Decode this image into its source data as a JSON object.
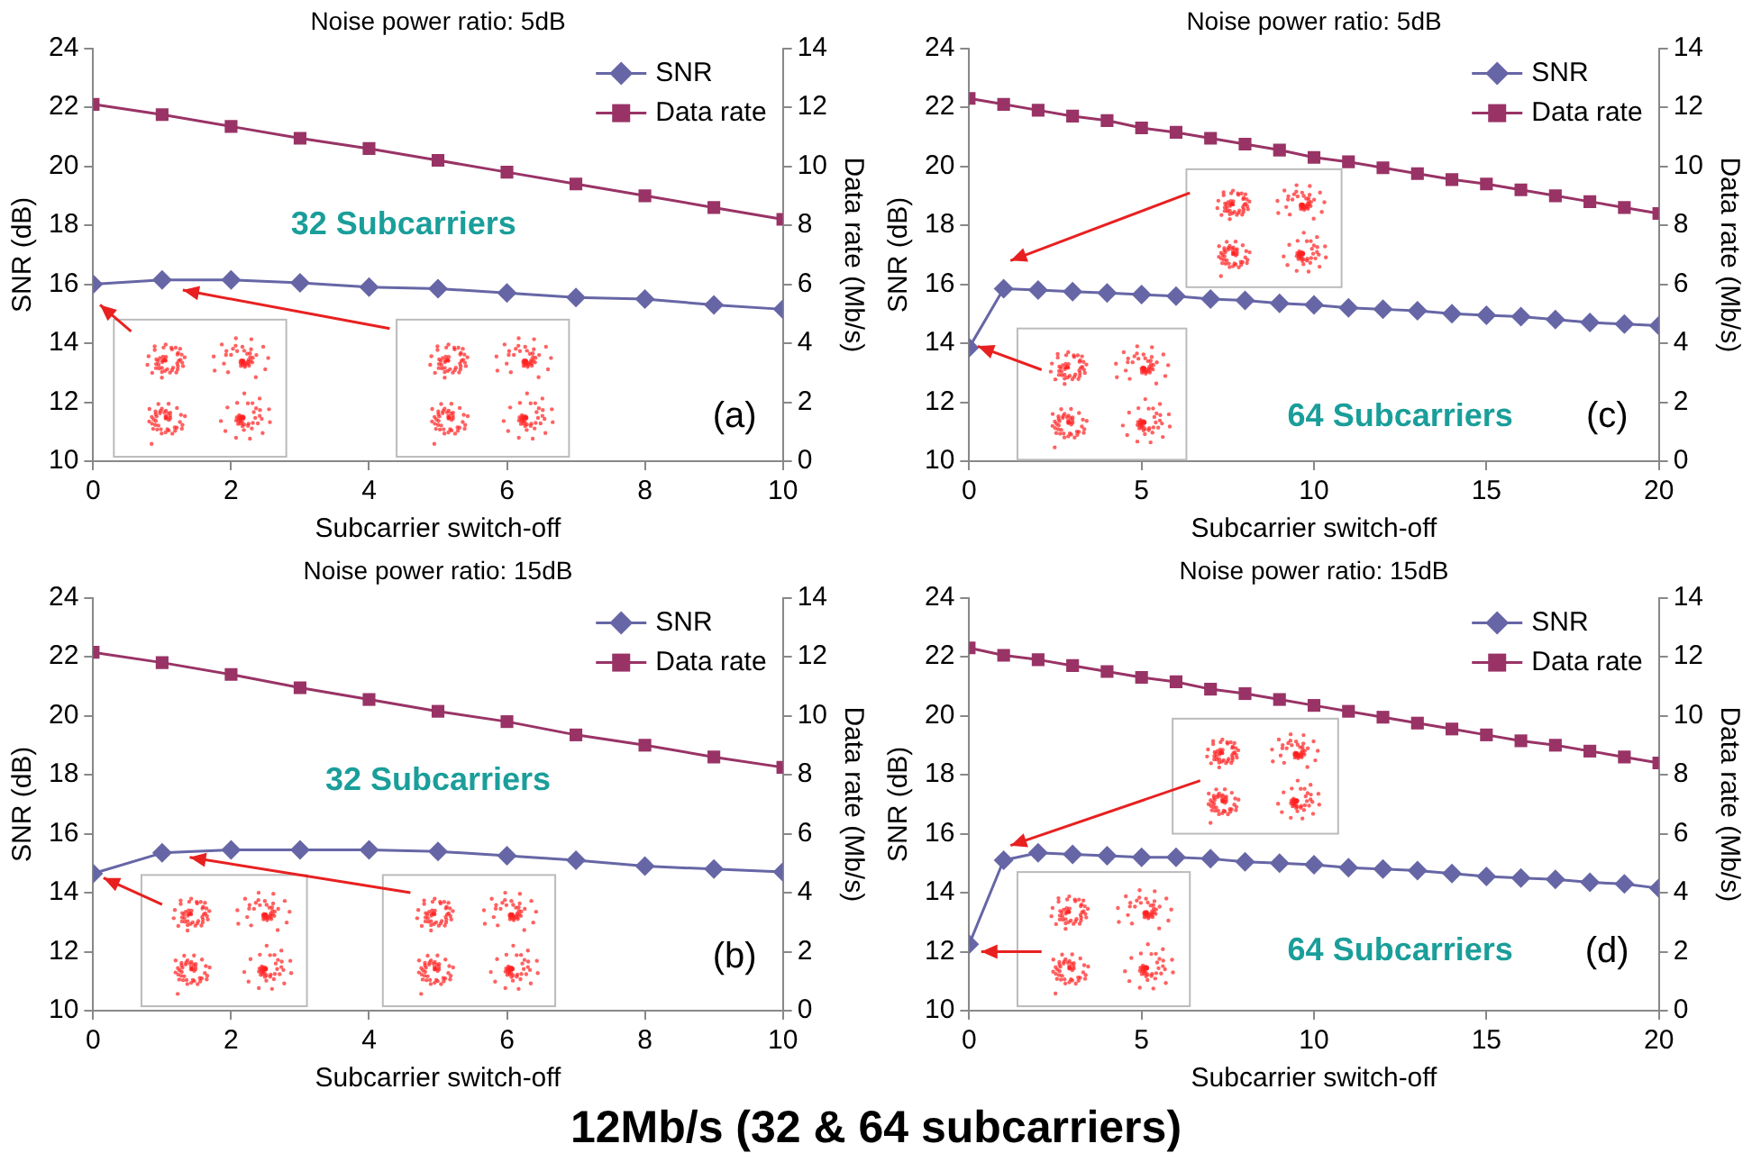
{
  "chart_data": [
    {
      "type": "line",
      "title": "Noise power ratio: 5dB",
      "xlabel": "Subcarrier switch-off",
      "ylabel": "SNR (dB)",
      "y2label": "Data rate (Mb/s)",
      "x": [
        0,
        1,
        2,
        3,
        4,
        5,
        6,
        7,
        8,
        9,
        10
      ],
      "xlim": [
        0,
        10
      ],
      "xticks": [
        0,
        2,
        4,
        6,
        8,
        10
      ],
      "ylim": [
        10,
        24
      ],
      "yticks": [
        10,
        12,
        14,
        16,
        18,
        20,
        22,
        24
      ],
      "y2lim": [
        0,
        14
      ],
      "y2ticks": [
        0,
        2,
        4,
        6,
        8,
        10,
        12,
        14
      ],
      "legend": "top right",
      "annotations": [
        "32 Subcarriers",
        "(a)"
      ],
      "series": [
        {
          "name": "SNR",
          "color": "#6666a6",
          "marker": "diamond",
          "values": [
            16.0,
            16.15,
            16.15,
            16.05,
            15.9,
            15.85,
            15.7,
            15.55,
            15.5,
            15.3,
            15.15
          ]
        },
        {
          "name": "Data rate",
          "color": "#993366",
          "marker": "square",
          "axis": "y2",
          "values": [
            12.1,
            11.75,
            11.35,
            10.95,
            10.6,
            10.2,
            9.8,
            9.4,
            9.0,
            8.6,
            8.2
          ]
        }
      ]
    },
    {
      "type": "line",
      "title": "Noise power ratio: 5dB",
      "xlabel": "Subcarrier switch-off",
      "ylabel": "SNR (dB)",
      "y2label": "Data rate (Mb/s)",
      "x": [
        0,
        1,
        2,
        3,
        4,
        5,
        6,
        7,
        8,
        9,
        10,
        11,
        12,
        13,
        14,
        15,
        16,
        17,
        18,
        19,
        20
      ],
      "xlim": [
        0,
        20
      ],
      "xticks": [
        0,
        5,
        10,
        15,
        20
      ],
      "ylim": [
        10,
        24
      ],
      "yticks": [
        10,
        12,
        14,
        16,
        18,
        20,
        22,
        24
      ],
      "y2lim": [
        0,
        14
      ],
      "y2ticks": [
        0,
        2,
        4,
        6,
        8,
        10,
        12,
        14
      ],
      "legend": "top right",
      "annotations": [
        "64 Subcarriers",
        "(c)"
      ],
      "series": [
        {
          "name": "SNR",
          "color": "#6666a6",
          "marker": "diamond",
          "values": [
            13.85,
            15.85,
            15.8,
            15.75,
            15.7,
            15.65,
            15.6,
            15.5,
            15.45,
            15.35,
            15.3,
            15.2,
            15.15,
            15.1,
            15.0,
            14.95,
            14.9,
            14.8,
            14.7,
            14.65,
            14.6
          ]
        },
        {
          "name": "Data rate",
          "color": "#993366",
          "marker": "square",
          "axis": "y2",
          "values": [
            12.3,
            12.1,
            11.9,
            11.7,
            11.55,
            11.3,
            11.15,
            10.95,
            10.75,
            10.55,
            10.3,
            10.15,
            9.95,
            9.75,
            9.55,
            9.4,
            9.2,
            9.0,
            8.8,
            8.6,
            8.4
          ]
        }
      ]
    },
    {
      "type": "line",
      "title": "Noise power ratio: 15dB",
      "xlabel": "Subcarrier switch-off",
      "ylabel": "SNR (dB)",
      "y2label": "Data rate (Mb/s)",
      "x": [
        0,
        1,
        2,
        3,
        4,
        5,
        6,
        7,
        8,
        9,
        10
      ],
      "xlim": [
        0,
        10
      ],
      "xticks": [
        0,
        2,
        4,
        6,
        8,
        10
      ],
      "ylim": [
        10,
        24
      ],
      "yticks": [
        10,
        12,
        14,
        16,
        18,
        20,
        22,
        24
      ],
      "y2lim": [
        0,
        14
      ],
      "y2ticks": [
        0,
        2,
        4,
        6,
        8,
        10,
        12,
        14
      ],
      "legend": "top right",
      "annotations": [
        "32 Subcarriers",
        "(b)"
      ],
      "series": [
        {
          "name": "SNR",
          "color": "#6666a6",
          "marker": "diamond",
          "values": [
            14.65,
            15.35,
            15.45,
            15.45,
            15.45,
            15.4,
            15.25,
            15.1,
            14.9,
            14.8,
            14.7
          ]
        },
        {
          "name": "Data rate",
          "color": "#993366",
          "marker": "square",
          "axis": "y2",
          "values": [
            12.15,
            11.8,
            11.4,
            10.95,
            10.55,
            10.15,
            9.8,
            9.35,
            9.0,
            8.6,
            8.25
          ]
        }
      ]
    },
    {
      "type": "line",
      "title": "Noise power ratio: 15dB",
      "xlabel": "Subcarrier switch-off",
      "ylabel": "SNR (dB)",
      "y2label": "Data rate (Mb/s)",
      "x": [
        0,
        1,
        2,
        3,
        4,
        5,
        6,
        7,
        8,
        9,
        10,
        11,
        12,
        13,
        14,
        15,
        16,
        17,
        18,
        19,
        20
      ],
      "xlim": [
        0,
        20
      ],
      "xticks": [
        0,
        5,
        10,
        15,
        20
      ],
      "ylim": [
        10,
        24
      ],
      "yticks": [
        10,
        12,
        14,
        16,
        18,
        20,
        22,
        24
      ],
      "y2lim": [
        0,
        14
      ],
      "y2ticks": [
        0,
        2,
        4,
        6,
        8,
        10,
        12,
        14
      ],
      "legend": "top right",
      "annotations": [
        "64 Subcarriers",
        "(d)"
      ],
      "series": [
        {
          "name": "SNR",
          "color": "#6666a6",
          "marker": "diamond",
          "values": [
            12.25,
            15.1,
            15.35,
            15.3,
            15.25,
            15.2,
            15.2,
            15.15,
            15.05,
            15.0,
            14.95,
            14.85,
            14.8,
            14.75,
            14.65,
            14.55,
            14.5,
            14.45,
            14.35,
            14.3,
            14.15
          ]
        },
        {
          "name": "Data rate",
          "color": "#993366",
          "marker": "square",
          "axis": "y2",
          "values": [
            12.3,
            12.05,
            11.9,
            11.7,
            11.5,
            11.3,
            11.15,
            10.9,
            10.75,
            10.55,
            10.35,
            10.15,
            9.95,
            9.75,
            9.55,
            9.35,
            9.15,
            9.0,
            8.8,
            8.6,
            8.4
          ]
        }
      ]
    },
    {
      "type": "other",
      "title": "12Mb/s (32 & 64 subcarriers)"
    }
  ]
}
